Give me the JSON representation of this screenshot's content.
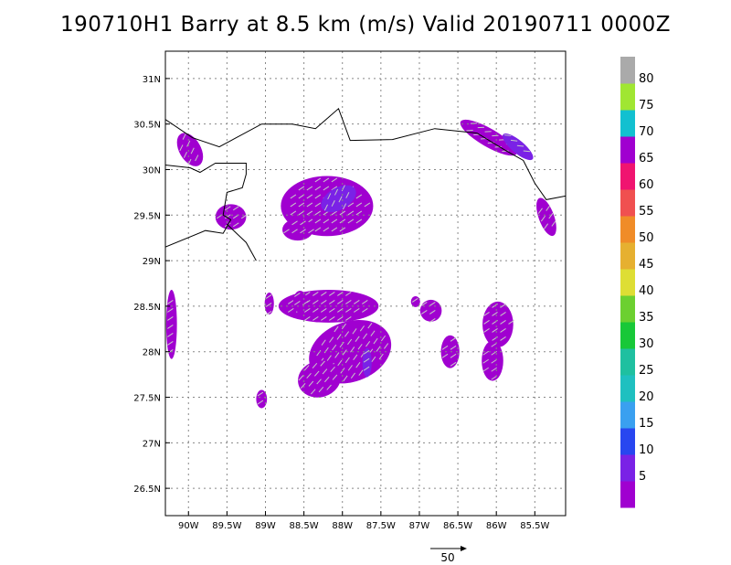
{
  "chart_data": {
    "type": "heatmap",
    "title": "190710H1 Barry at 8.5 km (m/s) Valid 20190711  0000Z",
    "x_ticks": [
      "90W",
      "89.5W",
      "89W",
      "88.5W",
      "88W",
      "87.5W",
      "87W",
      "86.5W",
      "86W",
      "85.5W"
    ],
    "y_ticks": [
      "31N",
      "30.5N",
      "30N",
      "29.5N",
      "29N",
      "28.5N",
      "28N",
      "27.5N",
      "27N",
      "26.5N"
    ],
    "x_ticks_values": [
      -90,
      -89.5,
      -89,
      -88.5,
      -88,
      -87.5,
      -87,
      -86.5,
      -86,
      -85.5
    ],
    "y_ticks_values": [
      31,
      30.5,
      30,
      29.5,
      29,
      28.5,
      28,
      27.5,
      27,
      26.5
    ],
    "xlim": [
      -90.3,
      -85.1
    ],
    "ylim": [
      26.2,
      31.3
    ],
    "grid": true,
    "units": "m/s",
    "colorbar": {
      "labels": [
        "5",
        "10",
        "15",
        "20",
        "25",
        "30",
        "35",
        "40",
        "45",
        "50",
        "55",
        "60",
        "65",
        "70",
        "75",
        "80"
      ],
      "colors": [
        "#a000d0",
        "#7a22e6",
        "#2846f0",
        "#3aa0f0",
        "#1fc0c0",
        "#1fc0a0",
        "#18c838",
        "#6cd030",
        "#dede34",
        "#e6b030",
        "#f08c28",
        "#f05050",
        "#f01470",
        "#a000d0",
        "#12c0d0",
        "#a0e632",
        "#aaaaaa"
      ]
    },
    "reference_vector": {
      "label": "50"
    },
    "wind_regions": [
      {
        "lon": -89.98,
        "lat": 30.22,
        "rx": 0.14,
        "ry": 0.2,
        "rot": -30,
        "level": 5
      },
      {
        "lon": -89.45,
        "lat": 29.48,
        "rx": 0.2,
        "ry": 0.14,
        "rot": 0,
        "level": 5
      },
      {
        "lon": -88.2,
        "lat": 29.6,
        "rx": 0.6,
        "ry": 0.33,
        "rot": 0,
        "level": 5
      },
      {
        "lon": -88.58,
        "lat": 29.34,
        "rx": 0.2,
        "ry": 0.12,
        "rot": 0,
        "level": 5
      },
      {
        "lon": -88.05,
        "lat": 29.68,
        "rx": 0.25,
        "ry": 0.12,
        "rot": -30,
        "level": 10
      },
      {
        "lon": -88.18,
        "lat": 28.5,
        "rx": 0.65,
        "ry": 0.18,
        "rot": 0,
        "level": 5
      },
      {
        "lon": -87.9,
        "lat": 28.0,
        "rx": 0.55,
        "ry": 0.33,
        "rot": -20,
        "level": 5
      },
      {
        "lon": -88.3,
        "lat": 27.7,
        "rx": 0.28,
        "ry": 0.2,
        "rot": -15,
        "level": 5
      },
      {
        "lon": -87.68,
        "lat": 27.88,
        "rx": 0.06,
        "ry": 0.16,
        "rot": 0,
        "level": 10
      },
      {
        "lon": -88.55,
        "lat": 28.55,
        "rx": 0.09,
        "ry": 0.12,
        "rot": 0,
        "level": 5
      },
      {
        "lon": -88.95,
        "lat": 28.53,
        "rx": 0.06,
        "ry": 0.12,
        "rot": 0,
        "level": 5
      },
      {
        "lon": -87.05,
        "lat": 28.55,
        "rx": 0.06,
        "ry": 0.06,
        "rot": 0,
        "level": 5
      },
      {
        "lon": -85.98,
        "lat": 28.3,
        "rx": 0.2,
        "ry": 0.25,
        "rot": 0,
        "level": 5
      },
      {
        "lon": -86.05,
        "lat": 27.9,
        "rx": 0.14,
        "ry": 0.22,
        "rot": 0,
        "level": 5
      },
      {
        "lon": -86.6,
        "lat": 28.0,
        "rx": 0.12,
        "ry": 0.18,
        "rot": 0,
        "level": 5
      },
      {
        "lon": -86.85,
        "lat": 28.45,
        "rx": 0.14,
        "ry": 0.12,
        "rot": 0,
        "level": 5
      },
      {
        "lon": -86.1,
        "lat": 30.35,
        "rx": 0.42,
        "ry": 0.1,
        "rot": 30,
        "level": 5
      },
      {
        "lon": -85.72,
        "lat": 30.25,
        "rx": 0.25,
        "ry": 0.07,
        "rot": 40,
        "level": 10
      },
      {
        "lon": -85.35,
        "lat": 29.48,
        "rx": 0.1,
        "ry": 0.22,
        "rot": -20,
        "level": 5
      },
      {
        "lon": -90.22,
        "lat": 28.3,
        "rx": 0.07,
        "ry": 0.38,
        "rot": 0,
        "level": 5
      },
      {
        "lon": -89.05,
        "lat": 27.48,
        "rx": 0.07,
        "ry": 0.1,
        "rot": 0,
        "level": 5
      }
    ],
    "coastline": [
      [
        -90.3,
        30.55
      ],
      [
        -89.95,
        30.35
      ],
      [
        -89.6,
        30.25
      ],
      [
        -89.05,
        30.5
      ],
      [
        -88.65,
        30.5
      ],
      [
        -88.35,
        30.45
      ],
      [
        -88.05,
        30.67
      ],
      [
        -87.9,
        30.32
      ],
      [
        -87.35,
        30.33
      ],
      [
        -86.8,
        30.45
      ],
      [
        -86.25,
        30.4
      ],
      [
        -85.9,
        30.22
      ],
      [
        -85.65,
        30.1
      ],
      [
        -85.5,
        29.85
      ],
      [
        -85.35,
        29.67
      ],
      [
        -85.1,
        29.71
      ]
    ],
    "delta": [
      [
        -90.3,
        29.15
      ],
      [
        -89.78,
        29.33
      ],
      [
        -89.55,
        29.3
      ],
      [
        -89.45,
        29.45
      ],
      [
        -89.55,
        29.5
      ],
      [
        -89.5,
        29.75
      ],
      [
        -89.3,
        29.8
      ],
      [
        -89.25,
        29.95
      ],
      [
        -89.25,
        30.07
      ],
      [
        -89.65,
        30.07
      ],
      [
        -89.85,
        29.97
      ],
      [
        -89.98,
        30.02
      ],
      [
        -90.3,
        30.05
      ]
    ],
    "delta_spur": [
      [
        -89.5,
        29.4
      ],
      [
        -89.25,
        29.2
      ],
      [
        -89.12,
        29.0
      ]
    ]
  }
}
